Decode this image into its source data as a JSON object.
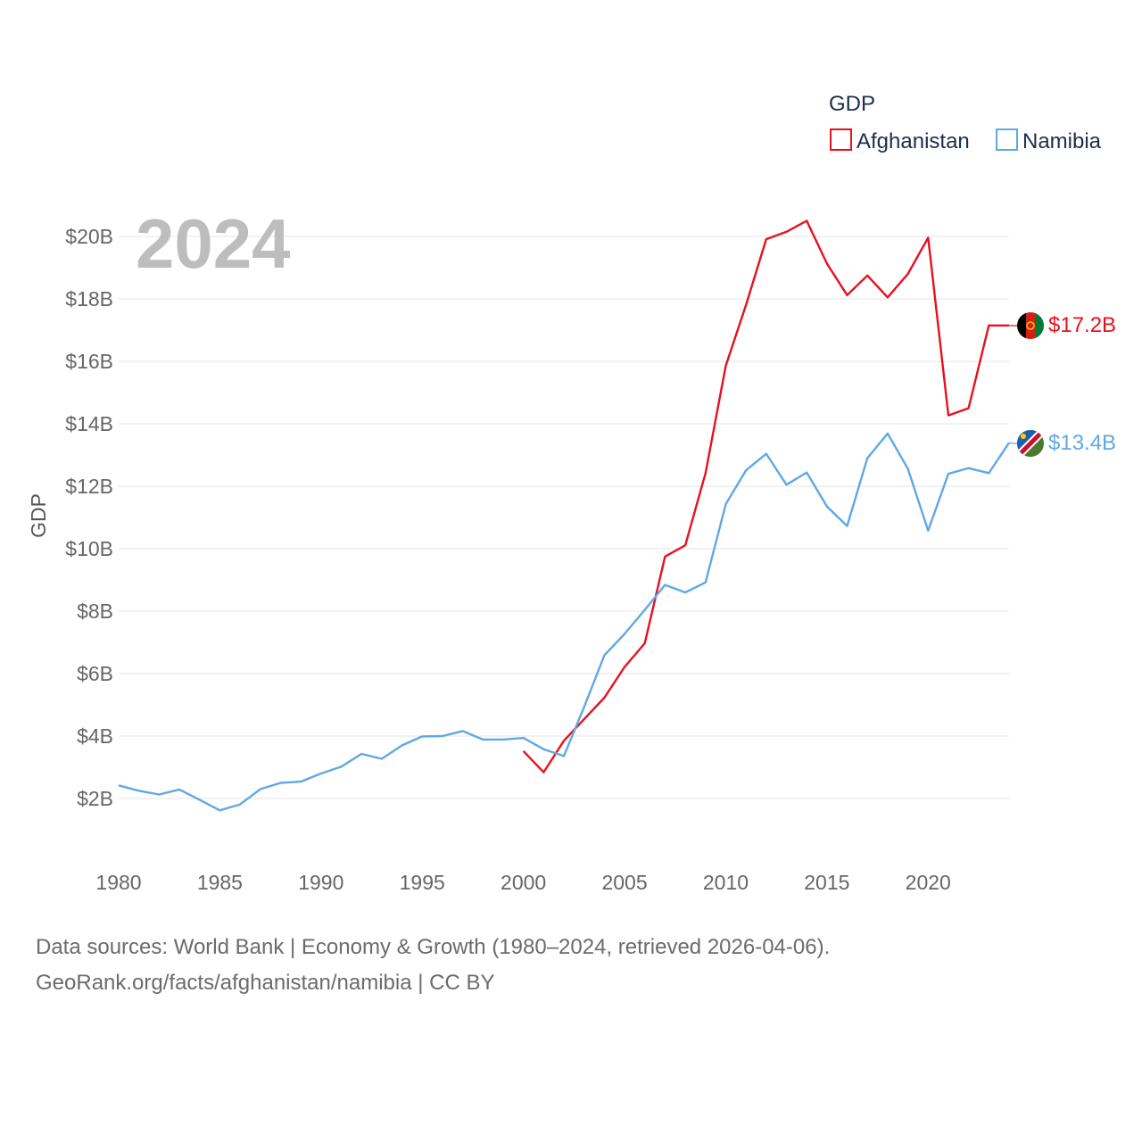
{
  "colors": {
    "afghanistan": "#e8101e",
    "namibia": "#5fa8e6",
    "grid": "#e6e6e6",
    "watermark": "#bdbdbd"
  },
  "chart_data": {
    "type": "line",
    "title": "GDP",
    "year_label": "2024",
    "ylabel": "GDP",
    "xlabel": "",
    "xlim": [
      1980,
      2024
    ],
    "ylim": [
      0,
      21000000000
    ],
    "x_ticks": [
      1980,
      1985,
      1990,
      1995,
      2000,
      2005,
      2010,
      2015,
      2020
    ],
    "x_tick_labels": [
      "1980",
      "1985",
      "1990",
      "1995",
      "2000",
      "2005",
      "2010",
      "2015",
      "2020"
    ],
    "y_ticks": [
      2000000000,
      4000000000,
      6000000000,
      8000000000,
      10000000000,
      12000000000,
      14000000000,
      16000000000,
      18000000000,
      20000000000
    ],
    "y_tick_labels": [
      "$2B",
      "$4B",
      "$6B",
      "$8B",
      "$10B",
      "$12B",
      "$14B",
      "$16B",
      "$18B",
      "$20B"
    ],
    "grid": true,
    "legend": {
      "title": "GDP",
      "placement": "top-right"
    },
    "series": [
      {
        "name": "Afghanistan",
        "color": "#e8101e",
        "end_label": "$17.2B",
        "points": [
          [
            2000,
            3520000000
          ],
          [
            2001,
            2840000000
          ],
          [
            2002,
            3850000000
          ],
          [
            2003,
            4540000000
          ],
          [
            2004,
            5230000000
          ],
          [
            2005,
            6210000000
          ],
          [
            2006,
            6970000000
          ],
          [
            2007,
            9750000000
          ],
          [
            2008,
            10110000000
          ],
          [
            2009,
            12420000000
          ],
          [
            2010,
            15860000000
          ],
          [
            2011,
            17800000000
          ],
          [
            2012,
            19910000000
          ],
          [
            2013,
            20150000000
          ],
          [
            2014,
            20500000000
          ],
          [
            2015,
            19130000000
          ],
          [
            2016,
            18120000000
          ],
          [
            2017,
            18750000000
          ],
          [
            2018,
            18050000000
          ],
          [
            2019,
            18800000000
          ],
          [
            2020,
            19960000000
          ],
          [
            2021,
            14270000000
          ],
          [
            2022,
            14500000000
          ],
          [
            2023,
            17150000000
          ],
          [
            2024,
            17150000000
          ]
        ]
      },
      {
        "name": "Namibia",
        "color": "#5fa8e6",
        "end_label": "$13.4B",
        "points": [
          [
            1980,
            2420000000
          ],
          [
            1981,
            2250000000
          ],
          [
            1982,
            2130000000
          ],
          [
            1983,
            2290000000
          ],
          [
            1984,
            1960000000
          ],
          [
            1985,
            1620000000
          ],
          [
            1986,
            1810000000
          ],
          [
            1987,
            2300000000
          ],
          [
            1988,
            2500000000
          ],
          [
            1989,
            2540000000
          ],
          [
            1990,
            2800000000
          ],
          [
            1991,
            3020000000
          ],
          [
            1992,
            3430000000
          ],
          [
            1993,
            3270000000
          ],
          [
            1994,
            3700000000
          ],
          [
            1995,
            3990000000
          ],
          [
            1996,
            4000000000
          ],
          [
            1997,
            4160000000
          ],
          [
            1998,
            3890000000
          ],
          [
            1999,
            3890000000
          ],
          [
            2000,
            3940000000
          ],
          [
            2001,
            3580000000
          ],
          [
            2002,
            3360000000
          ],
          [
            2003,
            4930000000
          ],
          [
            2004,
            6590000000
          ],
          [
            2005,
            7270000000
          ],
          [
            2006,
            8040000000
          ],
          [
            2007,
            8840000000
          ],
          [
            2008,
            8600000000
          ],
          [
            2009,
            8920000000
          ],
          [
            2010,
            11430000000
          ],
          [
            2011,
            12510000000
          ],
          [
            2012,
            13040000000
          ],
          [
            2013,
            12050000000
          ],
          [
            2014,
            12440000000
          ],
          [
            2015,
            11350000000
          ],
          [
            2016,
            10730000000
          ],
          [
            2017,
            12900000000
          ],
          [
            2018,
            13690000000
          ],
          [
            2019,
            12560000000
          ],
          [
            2020,
            10580000000
          ],
          [
            2021,
            12400000000
          ],
          [
            2022,
            12580000000
          ],
          [
            2023,
            12420000000
          ],
          [
            2024,
            13390000000
          ]
        ]
      }
    ]
  },
  "source": {
    "line1": "Data sources: World Bank | Economy & Growth (1980–2024, retrieved 2026-04-06).",
    "line2": "GeoRank.org/facts/afghanistan/namibia | CC BY"
  }
}
